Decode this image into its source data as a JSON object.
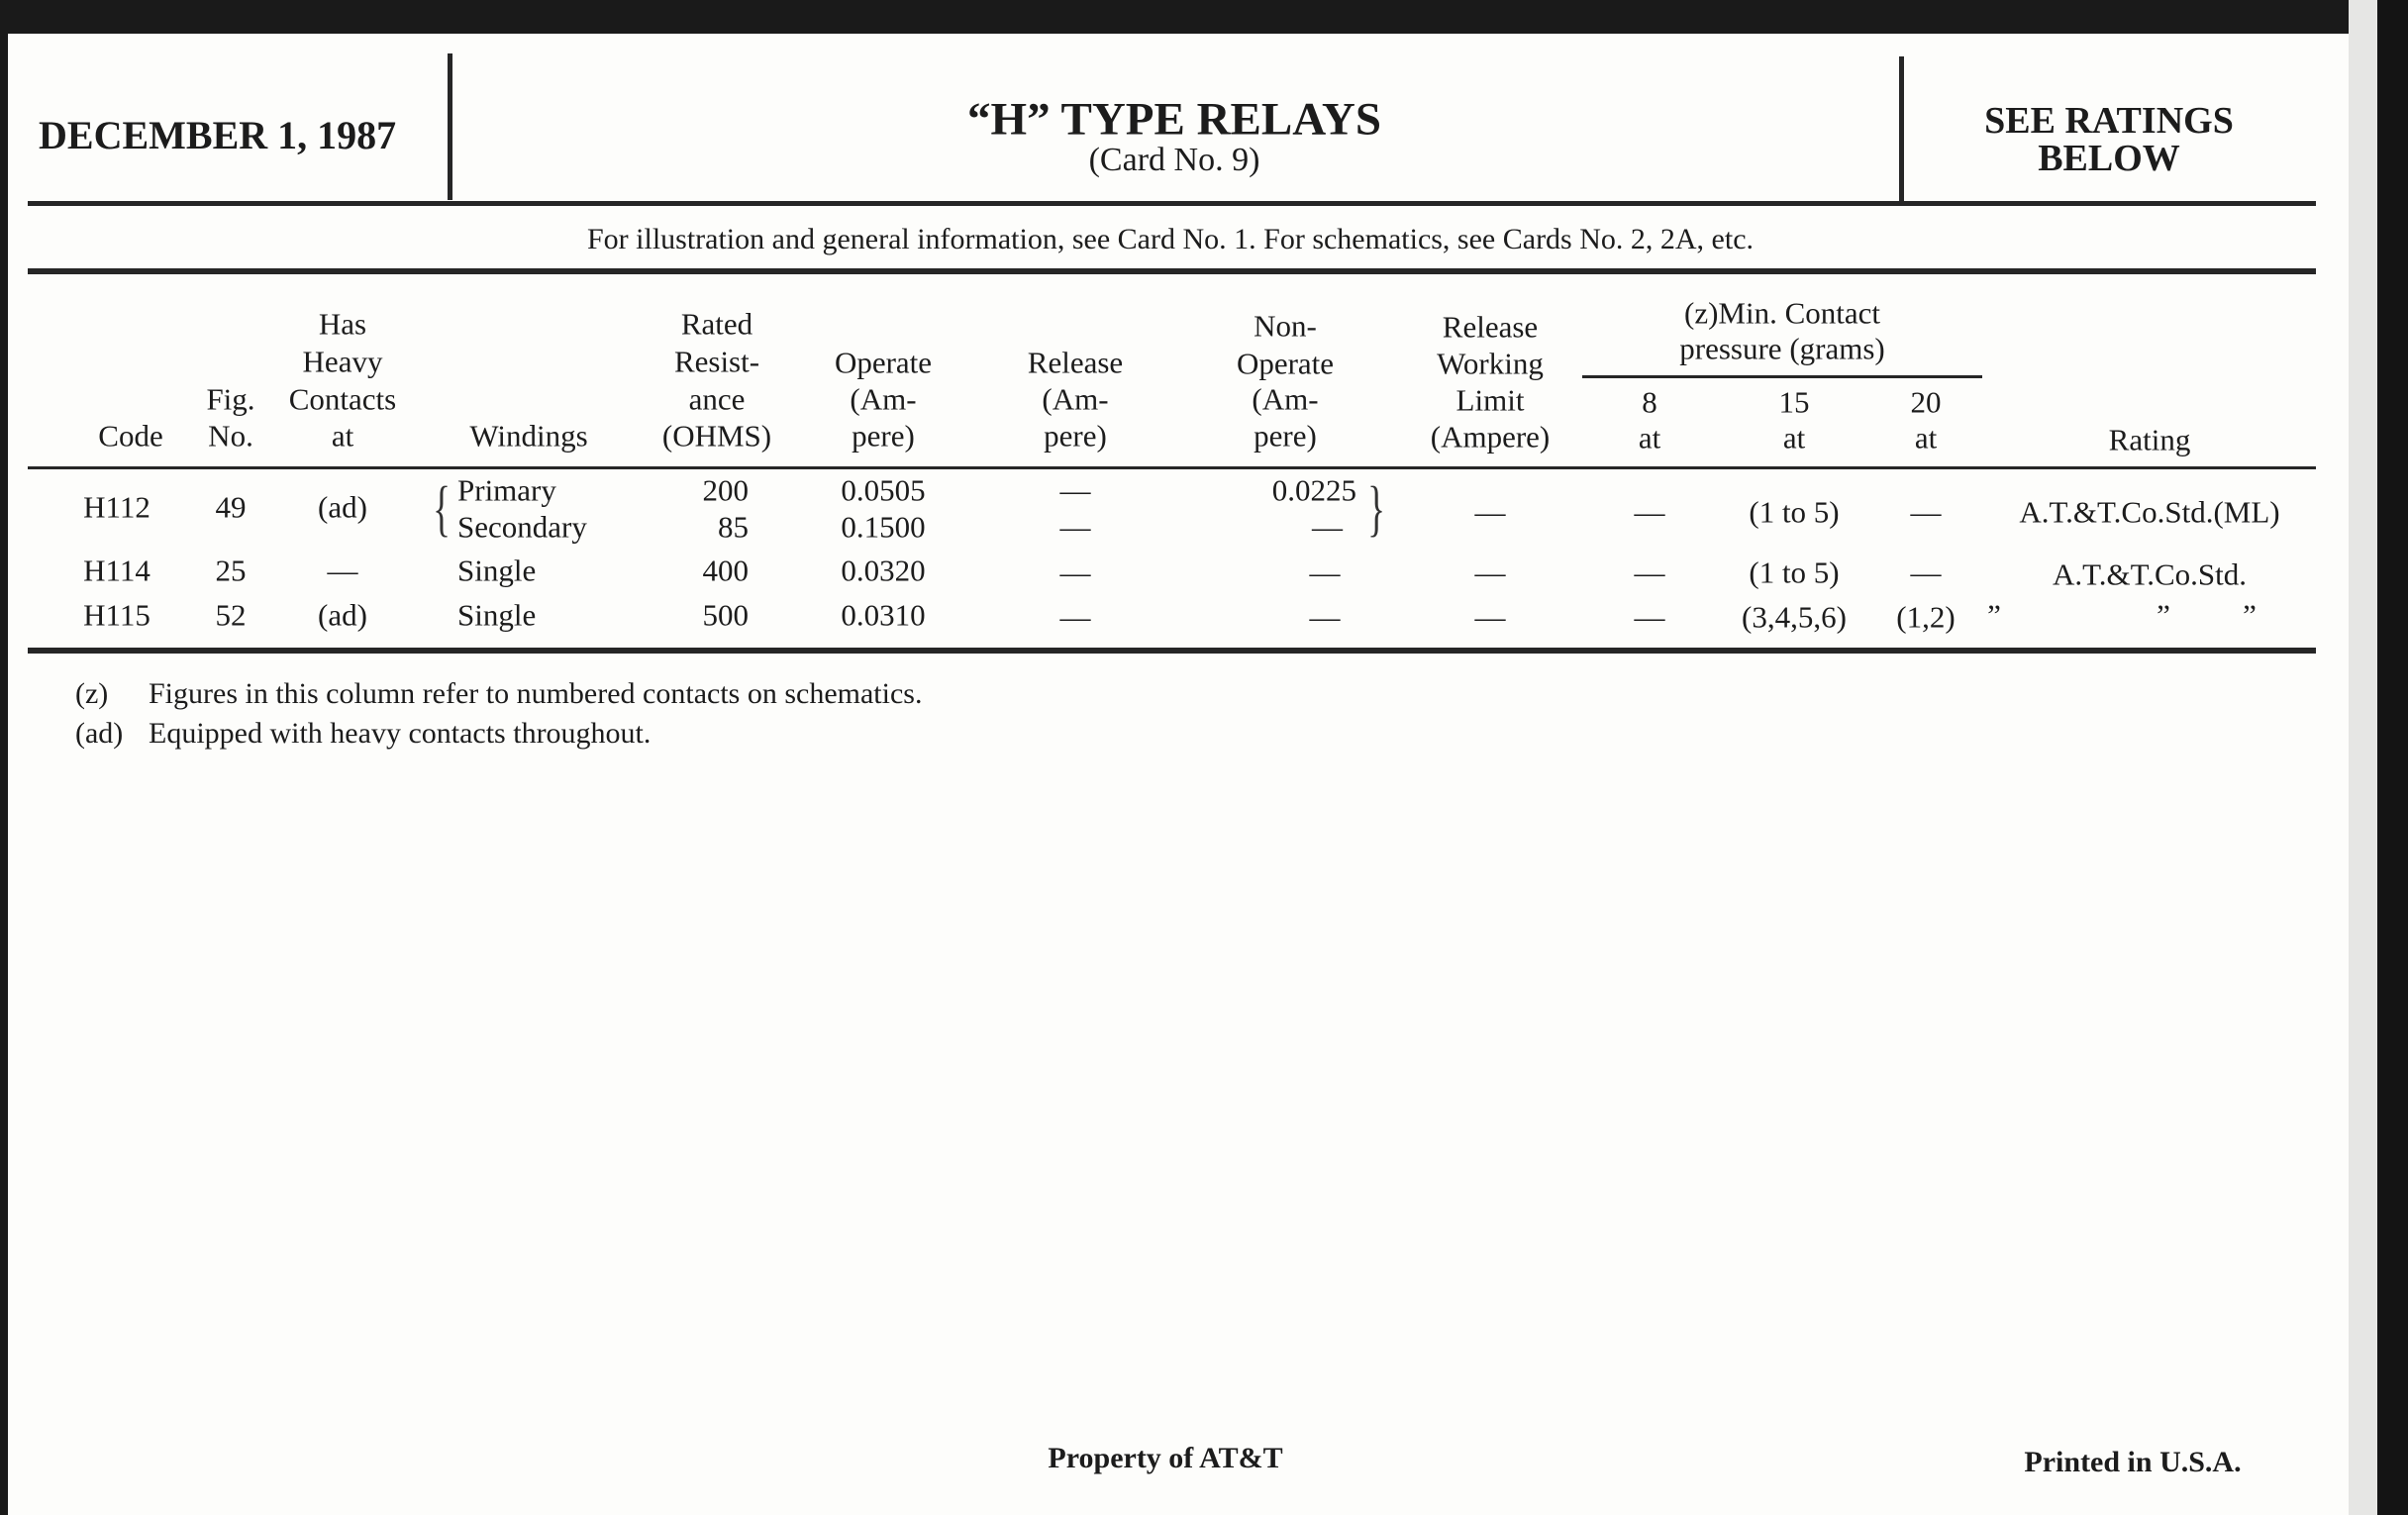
{
  "card": {
    "date": "DECEMBER 1, 1987",
    "title": "“H” TYPE RELAYS",
    "subtitle": "(Card No. 9)",
    "ratings_line1": "SEE RATINGS",
    "ratings_line2": "BELOW",
    "info": "For illustration and general information, see Card No. 1. For schematics, see Cards No. 2, 2A, etc."
  },
  "table": {
    "headers": {
      "code": "Code",
      "fig": [
        "Fig.",
        "No."
      ],
      "contacts": [
        "Has",
        "Heavy",
        "Contacts",
        "at"
      ],
      "windings": "Windings",
      "resistance": [
        "Rated",
        "Resist-",
        "ance",
        "(OHMS)"
      ],
      "operate": [
        "Operate",
        "(Am-",
        "pere)"
      ],
      "release": [
        "Release",
        "(Am-",
        "pere)"
      ],
      "non_operate": [
        "Non-",
        "Operate",
        "(Am-",
        "pere)"
      ],
      "release_working": [
        "Release",
        "Working",
        "Limit",
        "(Ampere)"
      ],
      "pressure_group": [
        "(z)Min. Contact",
        "pressure (grams)"
      ],
      "p8": [
        "8",
        "at"
      ],
      "p15": [
        "15",
        "at"
      ],
      "p20": [
        "20",
        "at"
      ],
      "rating": "Rating"
    },
    "rows": [
      {
        "code": "H112",
        "fig": "49",
        "contacts": "(ad)",
        "windings": [
          "Primary",
          "Secondary"
        ],
        "resistance": [
          "200",
          "85"
        ],
        "operate": [
          "0.0505",
          "0.1500"
        ],
        "release": [
          "—",
          "—"
        ],
        "non_operate": [
          "0.0225",
          "—"
        ],
        "release_working": "—",
        "p8": "—",
        "p15": "(1 to 5)",
        "p20": "—",
        "rating": "A.T.&T.Co.Std.(ML)"
      },
      {
        "code": "H114",
        "fig": "25",
        "contacts": "—",
        "windings": "Single",
        "resistance": "400",
        "operate": "0.0320",
        "release": "—",
        "non_operate": "—",
        "release_working": "—",
        "p8": "—",
        "p15": "(1 to 5)",
        "p20": "—",
        "rating": "A.T.&T.Co.Std."
      },
      {
        "code": "H115",
        "fig": "52",
        "contacts": "(ad)",
        "windings": "Single",
        "resistance": "500",
        "operate": "0.0310",
        "release": "—",
        "non_operate": "—",
        "release_working": "—",
        "p8": "—",
        "p15": "(3,4,5,6)",
        "p20": "(1,2)",
        "rating": [
          "”",
          "”",
          "”"
        ]
      }
    ]
  },
  "footnotes": [
    {
      "mark": "(z)",
      "text": "Figures in this column refer to numbered contacts on schematics."
    },
    {
      "mark": "(ad)",
      "text": "Equipped with heavy contacts throughout."
    }
  ],
  "footer": {
    "property": "Property of AT&T",
    "printed": "Printed in U.S.A."
  }
}
